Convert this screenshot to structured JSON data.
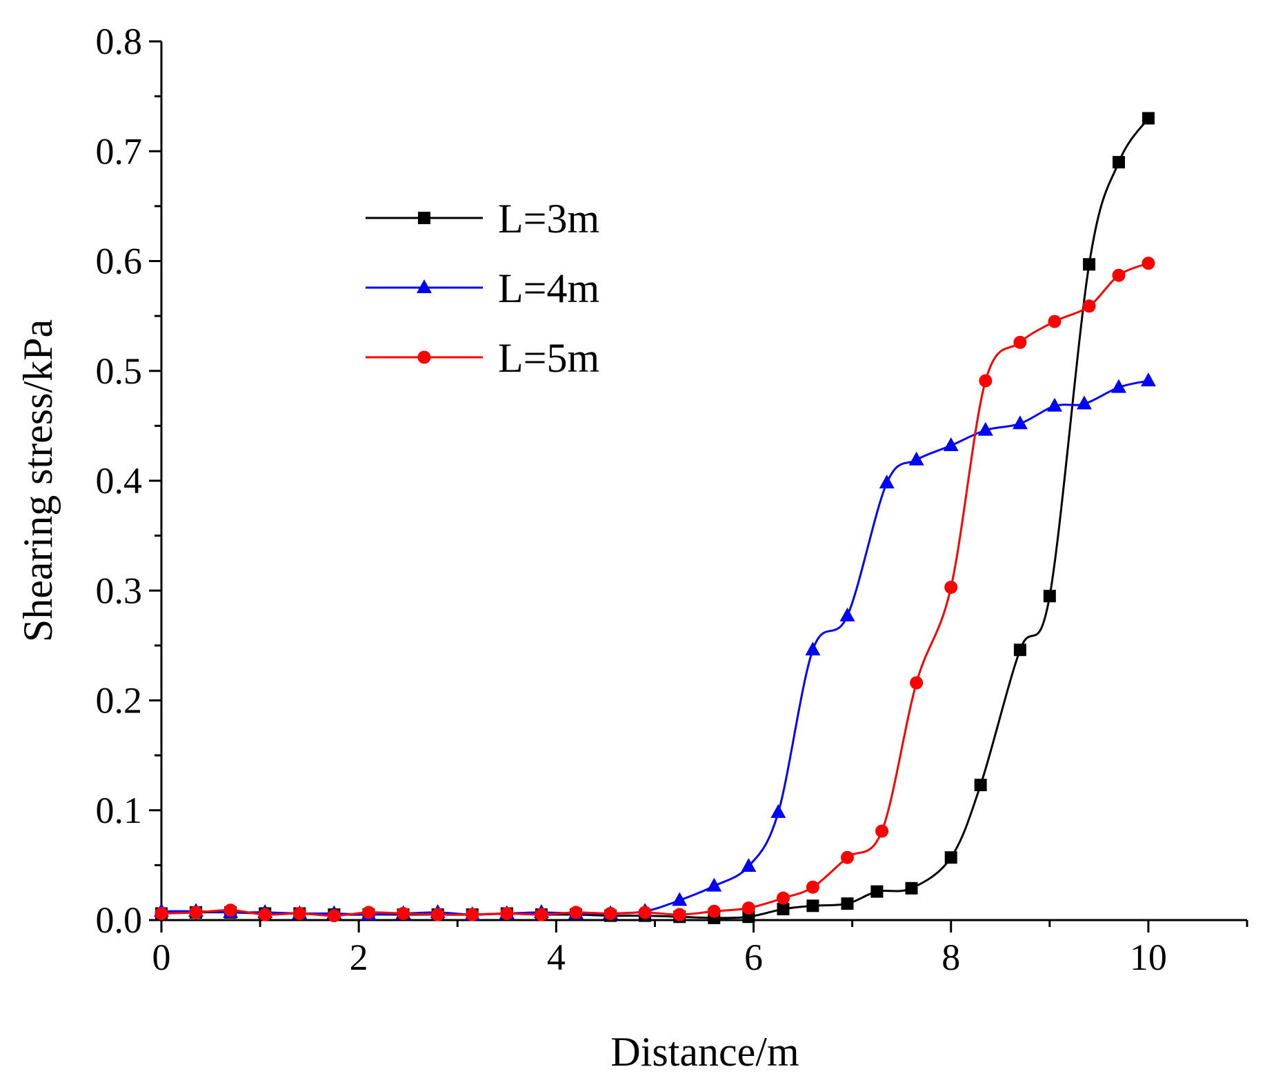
{
  "chart_data": {
    "type": "line",
    "title": "",
    "xlabel": "Distance/m",
    "ylabel": "Shearing stress/kPa",
    "xlim": [
      0,
      11
    ],
    "ylim": [
      0,
      0.8
    ],
    "xticks": [
      0,
      2,
      4,
      6,
      8,
      10
    ],
    "xtick_labels": [
      "0",
      "2",
      "4",
      "6",
      "8",
      "10"
    ],
    "yticks": [
      0,
      0.1,
      0.2,
      0.3,
      0.4,
      0.5,
      0.6,
      0.7,
      0.8
    ],
    "ytick_labels": [
      "0.0",
      "0.1",
      "0.2",
      "0.3",
      "0.4",
      "0.5",
      "0.6",
      "0.7",
      "0.8"
    ],
    "grid": false,
    "legend_position": "upper-left-center",
    "series": [
      {
        "name": "L=3m",
        "color": "#000000",
        "marker": "square",
        "x": [
          0,
          0.35,
          0.7,
          1.05,
          1.4,
          1.75,
          2.1,
          2.45,
          2.8,
          3.15,
          3.5,
          3.85,
          4.2,
          4.55,
          4.9,
          5.25,
          5.6,
          5.95,
          6.3,
          6.6,
          6.95,
          7.25,
          7.6,
          8.0,
          8.3,
          8.7,
          9.0,
          9.4,
          9.7,
          10.0
        ],
        "y": [
          0.006,
          0.007,
          0.007,
          0.006,
          0.006,
          0.005,
          0.005,
          0.005,
          0.005,
          0.005,
          0.006,
          0.005,
          0.005,
          0.004,
          0.004,
          0.003,
          0.002,
          0.003,
          0.01,
          0.013,
          0.015,
          0.026,
          0.029,
          0.057,
          0.123,
          0.246,
          0.295,
          0.597,
          0.69,
          0.73
        ]
      },
      {
        "name": "L=4m",
        "color": "#0000ff",
        "marker": "triangle",
        "x": [
          0,
          0.35,
          0.7,
          1.05,
          1.4,
          1.75,
          2.1,
          2.45,
          2.8,
          3.15,
          3.5,
          3.85,
          4.2,
          4.55,
          4.9,
          5.25,
          5.6,
          5.95,
          6.25,
          6.6,
          6.95,
          7.35,
          7.65,
          8.0,
          8.35,
          8.7,
          9.05,
          9.35,
          9.7,
          10.0
        ],
        "y": [
          0.008,
          0.008,
          0.007,
          0.007,
          0.006,
          0.006,
          0.005,
          0.006,
          0.007,
          0.005,
          0.006,
          0.007,
          0.006,
          0.006,
          0.008,
          0.018,
          0.031,
          0.049,
          0.098,
          0.246,
          0.277,
          0.398,
          0.419,
          0.432,
          0.446,
          0.452,
          0.468,
          0.47,
          0.485,
          0.491
        ]
      },
      {
        "name": "L=5m",
        "color": "#ff0000",
        "marker": "circle",
        "x": [
          0,
          0.35,
          0.7,
          1.05,
          1.4,
          1.75,
          2.1,
          2.45,
          2.8,
          3.15,
          3.5,
          3.85,
          4.2,
          4.55,
          4.9,
          5.25,
          5.6,
          5.95,
          6.3,
          6.6,
          6.95,
          7.3,
          7.65,
          8.0,
          8.35,
          8.7,
          9.05,
          9.4,
          9.7,
          10.0
        ],
        "y": [
          0.006,
          0.007,
          0.009,
          0.005,
          0.006,
          0.004,
          0.007,
          0.006,
          0.005,
          0.005,
          0.006,
          0.005,
          0.007,
          0.006,
          0.007,
          0.005,
          0.008,
          0.011,
          0.02,
          0.03,
          0.057,
          0.081,
          0.216,
          0.303,
          0.491,
          0.526,
          0.545,
          0.559,
          0.587,
          0.598
        ]
      }
    ]
  }
}
